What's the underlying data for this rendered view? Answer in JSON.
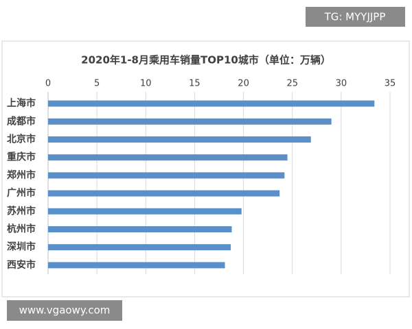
{
  "chart_data": {
    "type": "bar",
    "orientation": "horizontal",
    "title": "2020年1-8月乘用车销量TOP10城市（单位：万辆）",
    "categories": [
      "上海市",
      "成都市",
      "北京市",
      "重庆市",
      "郑州市",
      "广州市",
      "苏州市",
      "杭州市",
      "深圳市",
      "西安市"
    ],
    "values": [
      33.4,
      29.0,
      26.9,
      24.5,
      24.2,
      23.7,
      19.8,
      18.8,
      18.7,
      18.1
    ],
    "color": "#5b8fc9",
    "xlim": [
      0,
      35
    ],
    "xticks": [
      0,
      5,
      10,
      15,
      20,
      25,
      30,
      35
    ],
    "grid": true
  },
  "watermarks": [
    "TG: MYYJJPP",
    "www.vgaowy.com"
  ]
}
